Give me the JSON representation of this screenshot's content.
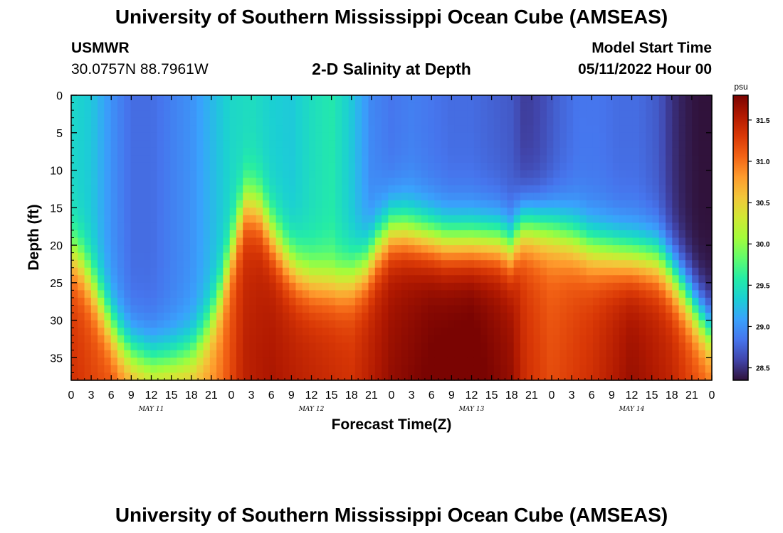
{
  "header": {
    "title": "University of Southern Mississippi Ocean Cube (AMSEAS)",
    "station_id": "USMWR",
    "coordinates": "30.0757N  88.7961W",
    "plot_title": "2-D Salinity at Depth",
    "model_start_label": "Model Start Time",
    "model_start_value": "05/11/2022 Hour 00"
  },
  "footer": {
    "title": "University of Southern Mississippi Ocean Cube (AMSEAS)"
  },
  "chart_data": {
    "type": "heatmap",
    "title": "2-D Salinity at Depth",
    "xlabel": "Forecast Time(Z)",
    "ylabel": "Depth (ft)",
    "x_ticks": [
      "0",
      "3",
      "6",
      "9",
      "12",
      "15",
      "18",
      "21",
      "0",
      "3",
      "6",
      "9",
      "12",
      "15",
      "18",
      "21",
      "0",
      "3",
      "6",
      "9",
      "12",
      "15",
      "18",
      "21",
      "0",
      "3",
      "6",
      "9",
      "12",
      "15",
      "18",
      "21",
      "0"
    ],
    "day_labels": [
      {
        "label": "MAY 11",
        "hour": 12
      },
      {
        "label": "MAY 12",
        "hour": 36
      },
      {
        "label": "MAY 13",
        "hour": 60
      },
      {
        "label": "MAY 14",
        "hour": 84
      }
    ],
    "x_range_hours": [
      0,
      96
    ],
    "y_ticks": [
      0,
      5,
      10,
      15,
      20,
      25,
      30,
      35
    ],
    "ylim": [
      0,
      38
    ],
    "colorbar": {
      "unit": "psu",
      "range": [
        28.35,
        31.8
      ],
      "ticks": [
        "28.5",
        "29.0",
        "29.5",
        "30.0",
        "30.5",
        "31.0",
        "31.5"
      ],
      "colors": [
        "#30123b",
        "#4145ab",
        "#4675ed",
        "#39a2fc",
        "#1bcfd4",
        "#24eca6",
        "#61fc6c",
        "#a4fc3b",
        "#d1e834",
        "#f3c63a",
        "#fe9b2d",
        "#f36315",
        "#d93806",
        "#b11901",
        "#7a0402"
      ]
    },
    "halocline_depth_ft": [
      {
        "hour": 0,
        "depth": 21.5
      },
      {
        "hour": 1,
        "depth": 22
      },
      {
        "hour": 3,
        "depth": 25
      },
      {
        "hour": 5,
        "depth": 29
      },
      {
        "hour": 7,
        "depth": 32.5
      },
      {
        "hour": 9,
        "depth": 34.5
      },
      {
        "hour": 12,
        "depth": 35.5
      },
      {
        "hour": 15,
        "depth": 35.5
      },
      {
        "hour": 18,
        "depth": 34.5
      },
      {
        "hour": 20,
        "depth": 32
      },
      {
        "hour": 22,
        "depth": 28
      },
      {
        "hour": 24,
        "depth": 21
      },
      {
        "hour": 26,
        "depth": 14.5
      },
      {
        "hour": 28,
        "depth": 15
      },
      {
        "hour": 30,
        "depth": 18.5
      },
      {
        "hour": 32,
        "depth": 21.5
      },
      {
        "hour": 34,
        "depth": 23.5
      },
      {
        "hour": 36,
        "depth": 24.5
      },
      {
        "hour": 40,
        "depth": 25
      },
      {
        "hour": 42,
        "depth": 24.5
      },
      {
        "hour": 44,
        "depth": 23
      },
      {
        "hour": 46,
        "depth": 20
      },
      {
        "hour": 48,
        "depth": 18
      },
      {
        "hour": 50,
        "depth": 18
      },
      {
        "hour": 52,
        "depth": 18.5
      },
      {
        "hour": 56,
        "depth": 19.5
      },
      {
        "hour": 60,
        "depth": 19.5
      },
      {
        "hour": 64,
        "depth": 19.5
      },
      {
        "hour": 66,
        "depth": 20.5
      },
      {
        "hour": 67,
        "depth": 18.5
      },
      {
        "hour": 68,
        "depth": 17.5
      },
      {
        "hour": 72,
        "depth": 18
      },
      {
        "hour": 75,
        "depth": 19
      },
      {
        "hour": 78,
        "depth": 20.5
      },
      {
        "hour": 84,
        "depth": 21.5
      },
      {
        "hour": 88,
        "depth": 22
      },
      {
        "hour": 90,
        "depth": 24
      },
      {
        "hour": 92,
        "depth": 26.5
      },
      {
        "hour": 94,
        "depth": 29.5
      },
      {
        "hour": 96,
        "depth": 32
      }
    ],
    "surface_salinity_psu": [
      {
        "hour": 0,
        "value": 29.4
      },
      {
        "hour": 3,
        "value": 29.3
      },
      {
        "hour": 6,
        "value": 29.0
      },
      {
        "hour": 9,
        "value": 28.8
      },
      {
        "hour": 12,
        "value": 28.8
      },
      {
        "hour": 15,
        "value": 28.9
      },
      {
        "hour": 18,
        "value": 29.0
      },
      {
        "hour": 21,
        "value": 29.2
      },
      {
        "hour": 24,
        "value": 29.4
      },
      {
        "hour": 27,
        "value": 29.45
      },
      {
        "hour": 30,
        "value": 29.35
      },
      {
        "hour": 33,
        "value": 29.3
      },
      {
        "hour": 36,
        "value": 29.45
      },
      {
        "hour": 39,
        "value": 29.55
      },
      {
        "hour": 42,
        "value": 29.3
      },
      {
        "hour": 45,
        "value": 28.95
      },
      {
        "hour": 48,
        "value": 28.85
      },
      {
        "hour": 51,
        "value": 28.9
      },
      {
        "hour": 54,
        "value": 28.85
      },
      {
        "hour": 57,
        "value": 28.8
      },
      {
        "hour": 60,
        "value": 28.8
      },
      {
        "hour": 63,
        "value": 28.75
      },
      {
        "hour": 66,
        "value": 28.7
      },
      {
        "hour": 68,
        "value": 28.55
      },
      {
        "hour": 70,
        "value": 28.6
      },
      {
        "hour": 73,
        "value": 28.75
      },
      {
        "hour": 76,
        "value": 28.85
      },
      {
        "hour": 79,
        "value": 28.85
      },
      {
        "hour": 82,
        "value": 28.8
      },
      {
        "hour": 85,
        "value": 28.8
      },
      {
        "hour": 88,
        "value": 28.7
      },
      {
        "hour": 90,
        "value": 28.5
      },
      {
        "hour": 92,
        "value": 28.4
      },
      {
        "hour": 94,
        "value": 28.35
      },
      {
        "hour": 96,
        "value": 28.35
      }
    ],
    "bottom_salinity_psu": [
      {
        "hour": 0,
        "value": 31.3
      },
      {
        "hour": 6,
        "value": 31.1
      },
      {
        "hour": 9,
        "value": 30.6
      },
      {
        "hour": 12,
        "value": 30.3
      },
      {
        "hour": 18,
        "value": 30.5
      },
      {
        "hour": 22,
        "value": 30.9
      },
      {
        "hour": 26,
        "value": 31.4
      },
      {
        "hour": 30,
        "value": 31.5
      },
      {
        "hour": 36,
        "value": 31.4
      },
      {
        "hour": 42,
        "value": 31.3
      },
      {
        "hour": 48,
        "value": 31.6
      },
      {
        "hour": 54,
        "value": 31.75
      },
      {
        "hour": 60,
        "value": 31.8
      },
      {
        "hour": 66,
        "value": 31.6
      },
      {
        "hour": 68,
        "value": 31.3
      },
      {
        "hour": 72,
        "value": 31.1
      },
      {
        "hour": 78,
        "value": 31.3
      },
      {
        "hour": 84,
        "value": 31.6
      },
      {
        "hour": 90,
        "value": 31.4
      },
      {
        "hour": 94,
        "value": 31.1
      },
      {
        "hour": 96,
        "value": 30.9
      }
    ]
  }
}
